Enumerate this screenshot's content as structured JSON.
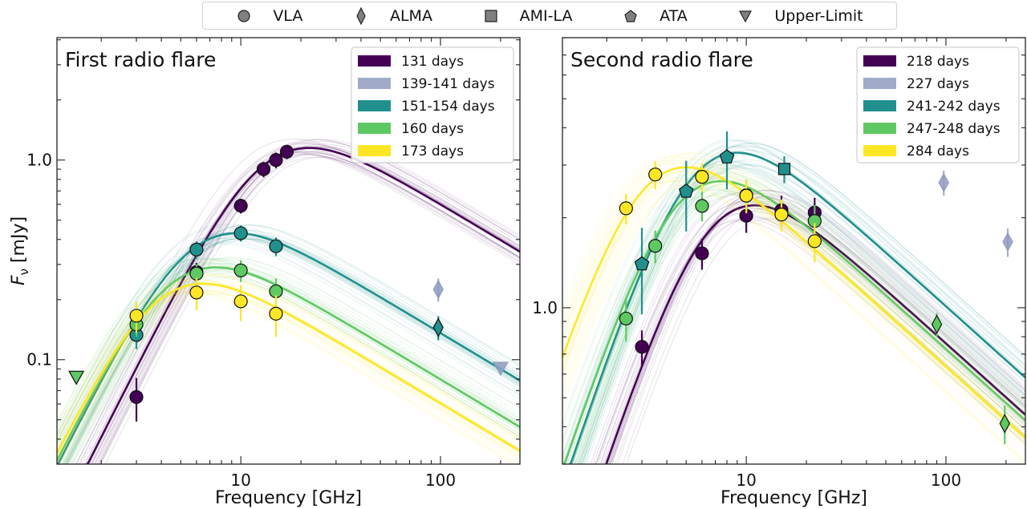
{
  "instrument_legend": [
    {
      "label": "VLA",
      "marker": "circle"
    },
    {
      "label": "ALMA",
      "marker": "thin-diamond"
    },
    {
      "label": "AMI-LA",
      "marker": "square"
    },
    {
      "label": "ATA",
      "marker": "pentagon"
    },
    {
      "label": "Upper-Limit",
      "marker": "triangle-down"
    }
  ],
  "marker_legend_color": "#808080",
  "chart_data": [
    {
      "type": "scatter",
      "title": "First radio flare",
      "xlabel": "Frequency [GHz]",
      "ylabel": {
        "main": "F",
        "sub": "ν",
        "unit": "[mJy]"
      },
      "xscale": "log",
      "yscale": "log",
      "xlim": [
        1.2,
        250
      ],
      "ylim": [
        0.03,
        4.1
      ],
      "xticks": [
        {
          "value": 10,
          "label": "10"
        },
        {
          "value": 100,
          "label": "100"
        }
      ],
      "yticks": [
        {
          "value": 0.1,
          "label": "0.1"
        },
        {
          "value": 1.0,
          "label": "1.0"
        }
      ],
      "grid": false,
      "legend_placement": "top-right",
      "series": [
        {
          "name": "131 days",
          "color": "#440154",
          "fit_peak": {
            "freq": 22,
            "flux": 1.15
          },
          "points": [
            {
              "x": 3,
              "y": 0.065,
              "err": 0.016,
              "marker": "circle"
            },
            {
              "x": 6,
              "y": 0.275,
              "err": 0.03,
              "marker": "circle"
            },
            {
              "x": 10,
              "y": 0.59,
              "err": 0.05,
              "marker": "circle"
            },
            {
              "x": 13,
              "y": 0.9,
              "err": 0.08,
              "marker": "circle"
            },
            {
              "x": 15,
              "y": 1.0,
              "err": 0.09,
              "marker": "circle"
            },
            {
              "x": 17,
              "y": 1.1,
              "err": 0.09,
              "marker": "circle"
            }
          ]
        },
        {
          "name": "139-141 days",
          "color": "#8f9bc0",
          "fit_peak": null,
          "points": [
            {
              "x": 97.5,
              "y": 0.225,
              "err": 0.03,
              "marker": "thin-diamond"
            },
            {
              "x": 200,
              "y": 0.091,
              "err": 0,
              "marker": "triangle-down"
            }
          ]
        },
        {
          "name": "151-154 days",
          "color": "#21908d",
          "fit_peak": {
            "freq": 9.5,
            "flux": 0.43
          },
          "points": [
            {
              "x": 3,
              "y": 0.133,
              "err": 0.02,
              "marker": "circle"
            },
            {
              "x": 6,
              "y": 0.356,
              "err": 0.035,
              "marker": "circle"
            },
            {
              "x": 10,
              "y": 0.43,
              "err": 0.04,
              "marker": "circle"
            },
            {
              "x": 15,
              "y": 0.37,
              "err": 0.04,
              "marker": "circle"
            },
            {
              "x": 97.5,
              "y": 0.145,
              "err": 0.02,
              "marker": "thin-diamond"
            }
          ]
        },
        {
          "name": "160 days",
          "color": "#5ec962",
          "fit_peak": {
            "freq": 7.5,
            "flux": 0.29
          },
          "points": [
            {
              "x": 1.5,
              "y": 0.082,
              "err": 0,
              "marker": "triangle-down"
            },
            {
              "x": 3,
              "y": 0.15,
              "err": 0.02,
              "marker": "circle"
            },
            {
              "x": 6,
              "y": 0.27,
              "err": 0.03,
              "marker": "circle"
            },
            {
              "x": 10,
              "y": 0.28,
              "err": 0.035,
              "marker": "circle"
            },
            {
              "x": 15,
              "y": 0.22,
              "err": 0.035,
              "marker": "circle"
            }
          ]
        },
        {
          "name": "173 days",
          "color": "#fde725",
          "fit_peak": {
            "freq": 6.5,
            "flux": 0.24
          },
          "points": [
            {
              "x": 3,
              "y": 0.166,
              "err": 0.03,
              "marker": "circle"
            },
            {
              "x": 6,
              "y": 0.217,
              "err": 0.04,
              "marker": "circle"
            },
            {
              "x": 10,
              "y": 0.196,
              "err": 0.04,
              "marker": "circle"
            },
            {
              "x": 15,
              "y": 0.17,
              "err": 0.04,
              "marker": "circle"
            }
          ]
        }
      ]
    },
    {
      "type": "scatter",
      "title": "Second radio flare",
      "xlabel": "Frequency [GHz]",
      "xscale": "log",
      "yscale": "log",
      "xlim": [
        1.2,
        250
      ],
      "ylim": [
        0.3,
        8
      ],
      "xticks": [
        {
          "value": 10,
          "label": "10"
        },
        {
          "value": 100,
          "label": "100"
        }
      ],
      "yticks": [
        {
          "value": 1.0,
          "label": "1.0"
        }
      ],
      "grid": false,
      "legend_placement": "top-right",
      "series": [
        {
          "name": "218 days",
          "color": "#440154",
          "fit_peak": {
            "freq": 11,
            "flux": 2.2
          },
          "points": [
            {
              "x": 3,
              "y": 0.74,
              "err": 0.1,
              "marker": "circle"
            },
            {
              "x": 6,
              "y": 1.52,
              "err": 0.18,
              "marker": "circle"
            },
            {
              "x": 10,
              "y": 2.03,
              "err": 0.25,
              "marker": "circle"
            },
            {
              "x": 15,
              "y": 2.12,
              "err": 0.25,
              "marker": "circle"
            },
            {
              "x": 22,
              "y": 2.08,
              "err": 0.25,
              "marker": "circle"
            }
          ]
        },
        {
          "name": "227 days",
          "color": "#8f9bc0",
          "fit_peak": null,
          "points": [
            {
              "x": 97.5,
              "y": 2.62,
              "err": 0.25,
              "marker": "thin-diamond"
            },
            {
              "x": 204,
              "y": 1.66,
              "err": 0.18,
              "marker": "thin-diamond"
            }
          ]
        },
        {
          "name": "241-242 days",
          "color": "#21908d",
          "fit_peak": {
            "freq": 9,
            "flux": 3.3
          },
          "points": [
            {
              "x": 3,
              "y": 1.4,
              "err": 0.45,
              "marker": "pentagon"
            },
            {
              "x": 5,
              "y": 2.45,
              "err": 0.65,
              "marker": "pentagon"
            },
            {
              "x": 8,
              "y": 3.19,
              "err": 0.7,
              "marker": "pentagon"
            },
            {
              "x": 15.5,
              "y": 2.91,
              "err": 0.3,
              "marker": "square"
            }
          ]
        },
        {
          "name": "247-248 days",
          "color": "#5ec962",
          "fit_peak": {
            "freq": 7.5,
            "flux": 2.65
          },
          "points": [
            {
              "x": 2.5,
              "y": 0.92,
              "err": 0.15,
              "marker": "circle"
            },
            {
              "x": 3.5,
              "y": 1.61,
              "err": 0.2,
              "marker": "circle"
            },
            {
              "x": 6,
              "y": 2.19,
              "err": 0.25,
              "marker": "circle"
            },
            {
              "x": 10,
              "y": 2.38,
              "err": 0.3,
              "marker": "circle"
            },
            {
              "x": 22,
              "y": 1.95,
              "err": 0.25,
              "marker": "circle"
            },
            {
              "x": 90,
              "y": 0.88,
              "err": 0.08,
              "marker": "thin-diamond"
            },
            {
              "x": 197,
              "y": 0.41,
              "err": 0.06,
              "marker": "thin-diamond"
            }
          ]
        },
        {
          "name": "284 days",
          "color": "#fde725",
          "fit_peak": {
            "freq": 5,
            "flux": 2.95
          },
          "points": [
            {
              "x": 2.5,
              "y": 2.15,
              "err": 0.25,
              "marker": "circle"
            },
            {
              "x": 3.5,
              "y": 2.79,
              "err": 0.3,
              "marker": "circle"
            },
            {
              "x": 6,
              "y": 2.74,
              "err": 0.3,
              "marker": "circle"
            },
            {
              "x": 10,
              "y": 2.37,
              "err": 0.3,
              "marker": "circle"
            },
            {
              "x": 15,
              "y": 2.05,
              "err": 0.25,
              "marker": "circle"
            },
            {
              "x": 22,
              "y": 1.67,
              "err": 0.25,
              "marker": "circle"
            }
          ]
        }
      ]
    }
  ]
}
